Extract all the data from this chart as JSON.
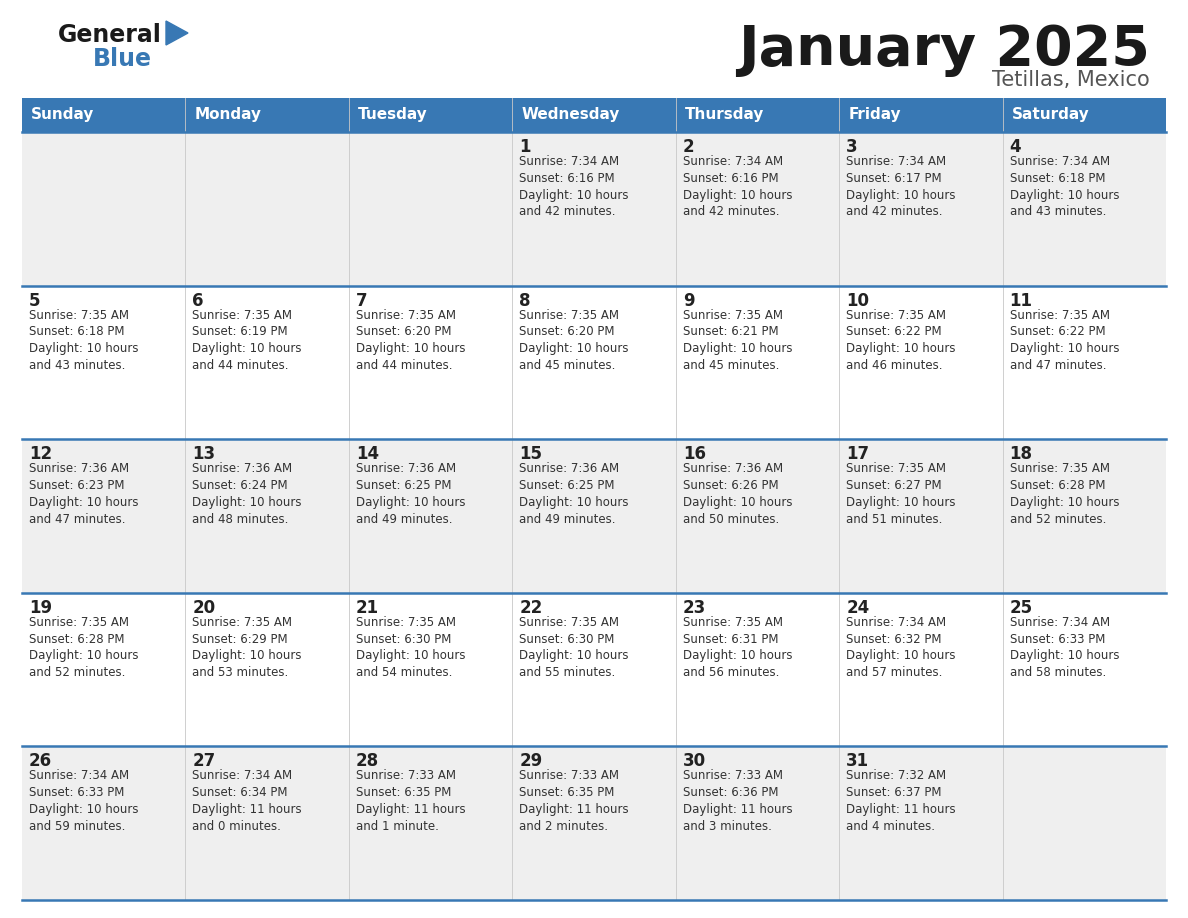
{
  "title": "January 2025",
  "subtitle": "Tetillas, Mexico",
  "days_of_week": [
    "Sunday",
    "Monday",
    "Tuesday",
    "Wednesday",
    "Thursday",
    "Friday",
    "Saturday"
  ],
  "header_bg": "#3878b4",
  "header_text": "#ffffff",
  "row_bg_odd": "#efefef",
  "row_bg_even": "#ffffff",
  "separator_color": "#3878b4",
  "day_number_color": "#222222",
  "text_color": "#333333",
  "calendar_data": [
    [
      {
        "day": null,
        "sunrise": null,
        "sunset": null,
        "daylight": null
      },
      {
        "day": null,
        "sunrise": null,
        "sunset": null,
        "daylight": null
      },
      {
        "day": null,
        "sunrise": null,
        "sunset": null,
        "daylight": null
      },
      {
        "day": 1,
        "sunrise": "7:34 AM",
        "sunset": "6:16 PM",
        "daylight": "10 hours\nand 42 minutes."
      },
      {
        "day": 2,
        "sunrise": "7:34 AM",
        "sunset": "6:16 PM",
        "daylight": "10 hours\nand 42 minutes."
      },
      {
        "day": 3,
        "sunrise": "7:34 AM",
        "sunset": "6:17 PM",
        "daylight": "10 hours\nand 42 minutes."
      },
      {
        "day": 4,
        "sunrise": "7:34 AM",
        "sunset": "6:18 PM",
        "daylight": "10 hours\nand 43 minutes."
      }
    ],
    [
      {
        "day": 5,
        "sunrise": "7:35 AM",
        "sunset": "6:18 PM",
        "daylight": "10 hours\nand 43 minutes."
      },
      {
        "day": 6,
        "sunrise": "7:35 AM",
        "sunset": "6:19 PM",
        "daylight": "10 hours\nand 44 minutes."
      },
      {
        "day": 7,
        "sunrise": "7:35 AM",
        "sunset": "6:20 PM",
        "daylight": "10 hours\nand 44 minutes."
      },
      {
        "day": 8,
        "sunrise": "7:35 AM",
        "sunset": "6:20 PM",
        "daylight": "10 hours\nand 45 minutes."
      },
      {
        "day": 9,
        "sunrise": "7:35 AM",
        "sunset": "6:21 PM",
        "daylight": "10 hours\nand 45 minutes."
      },
      {
        "day": 10,
        "sunrise": "7:35 AM",
        "sunset": "6:22 PM",
        "daylight": "10 hours\nand 46 minutes."
      },
      {
        "day": 11,
        "sunrise": "7:35 AM",
        "sunset": "6:22 PM",
        "daylight": "10 hours\nand 47 minutes."
      }
    ],
    [
      {
        "day": 12,
        "sunrise": "7:36 AM",
        "sunset": "6:23 PM",
        "daylight": "10 hours\nand 47 minutes."
      },
      {
        "day": 13,
        "sunrise": "7:36 AM",
        "sunset": "6:24 PM",
        "daylight": "10 hours\nand 48 minutes."
      },
      {
        "day": 14,
        "sunrise": "7:36 AM",
        "sunset": "6:25 PM",
        "daylight": "10 hours\nand 49 minutes."
      },
      {
        "day": 15,
        "sunrise": "7:36 AM",
        "sunset": "6:25 PM",
        "daylight": "10 hours\nand 49 minutes."
      },
      {
        "day": 16,
        "sunrise": "7:36 AM",
        "sunset": "6:26 PM",
        "daylight": "10 hours\nand 50 minutes."
      },
      {
        "day": 17,
        "sunrise": "7:35 AM",
        "sunset": "6:27 PM",
        "daylight": "10 hours\nand 51 minutes."
      },
      {
        "day": 18,
        "sunrise": "7:35 AM",
        "sunset": "6:28 PM",
        "daylight": "10 hours\nand 52 minutes."
      }
    ],
    [
      {
        "day": 19,
        "sunrise": "7:35 AM",
        "sunset": "6:28 PM",
        "daylight": "10 hours\nand 52 minutes."
      },
      {
        "day": 20,
        "sunrise": "7:35 AM",
        "sunset": "6:29 PM",
        "daylight": "10 hours\nand 53 minutes."
      },
      {
        "day": 21,
        "sunrise": "7:35 AM",
        "sunset": "6:30 PM",
        "daylight": "10 hours\nand 54 minutes."
      },
      {
        "day": 22,
        "sunrise": "7:35 AM",
        "sunset": "6:30 PM",
        "daylight": "10 hours\nand 55 minutes."
      },
      {
        "day": 23,
        "sunrise": "7:35 AM",
        "sunset": "6:31 PM",
        "daylight": "10 hours\nand 56 minutes."
      },
      {
        "day": 24,
        "sunrise": "7:34 AM",
        "sunset": "6:32 PM",
        "daylight": "10 hours\nand 57 minutes."
      },
      {
        "day": 25,
        "sunrise": "7:34 AM",
        "sunset": "6:33 PM",
        "daylight": "10 hours\nand 58 minutes."
      }
    ],
    [
      {
        "day": 26,
        "sunrise": "7:34 AM",
        "sunset": "6:33 PM",
        "daylight": "10 hours\nand 59 minutes."
      },
      {
        "day": 27,
        "sunrise": "7:34 AM",
        "sunset": "6:34 PM",
        "daylight": "11 hours\nand 0 minutes."
      },
      {
        "day": 28,
        "sunrise": "7:33 AM",
        "sunset": "6:35 PM",
        "daylight": "11 hours\nand 1 minute."
      },
      {
        "day": 29,
        "sunrise": "7:33 AM",
        "sunset": "6:35 PM",
        "daylight": "11 hours\nand 2 minutes."
      },
      {
        "day": 30,
        "sunrise": "7:33 AM",
        "sunset": "6:36 PM",
        "daylight": "11 hours\nand 3 minutes."
      },
      {
        "day": 31,
        "sunrise": "7:32 AM",
        "sunset": "6:37 PM",
        "daylight": "11 hours\nand 4 minutes."
      },
      {
        "day": null,
        "sunrise": null,
        "sunset": null,
        "daylight": null
      }
    ]
  ],
  "logo_color_general": "#1a1a1a",
  "logo_color_blue": "#3878b4",
  "title_fontsize": 40,
  "subtitle_fontsize": 15,
  "header_fontsize": 11,
  "day_num_fontsize": 12,
  "cell_text_fontsize": 8.5
}
